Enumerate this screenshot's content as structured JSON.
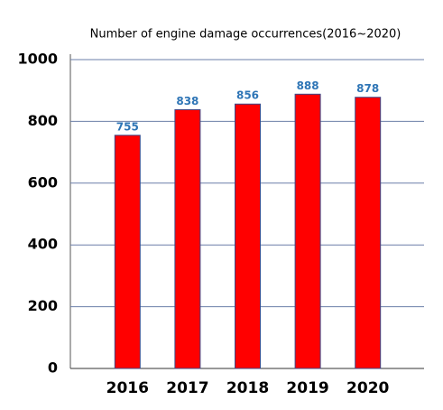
{
  "chart_data": {
    "type": "bar",
    "title": "Number of engine damage occurrences(2016~2020)",
    "categories": [
      "2016",
      "2017",
      "2018",
      "2019",
      "2020"
    ],
    "values": [
      755,
      838,
      856,
      888,
      878
    ],
    "color": "#ff0000",
    "edge_color": "#3b4a8a",
    "label_color": "#2e75b6",
    "ylim": [
      0,
      1000
    ],
    "yticks": [
      0,
      200,
      400,
      600,
      800,
      1000
    ],
    "grid": true
  }
}
